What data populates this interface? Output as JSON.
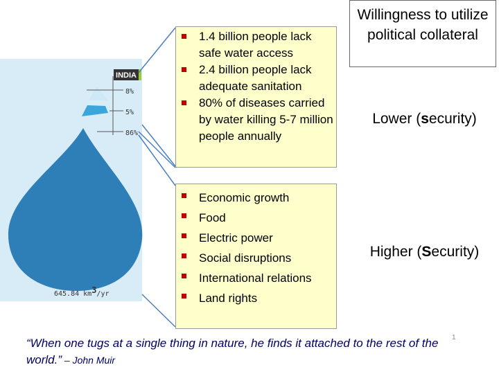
{
  "title_box": {
    "text": "Willingness to utilize political collateral"
  },
  "figure": {
    "country": "INDIA",
    "labels": [
      "8%",
      "5%",
      "86%"
    ],
    "total": {
      "number": "645.84 km",
      "superscript": "3",
      "unit": "/yr"
    }
  },
  "box_top": {
    "items": [
      "1.4 billion people lack safe water access",
      "2.4 billion people lack adequate sanitation",
      "80% of diseases carried by water killing 5-7 million people annually"
    ]
  },
  "box_bottom": {
    "items": [
      "Economic growth",
      "Food",
      "Electric power",
      "Social disruptions",
      "International relations",
      "Land rights"
    ]
  },
  "lower": {
    "before": "Lower (",
    "bold": "s",
    "after": "ecurity)"
  },
  "higher": {
    "before": "Higher (",
    "bold": "S",
    "after": "ecurity)"
  },
  "quote": {
    "text": "“When one tugs at a single thing in nature, he finds it attached to the rest of the world.”",
    "author": " – John Muir"
  },
  "page_number": "1"
}
